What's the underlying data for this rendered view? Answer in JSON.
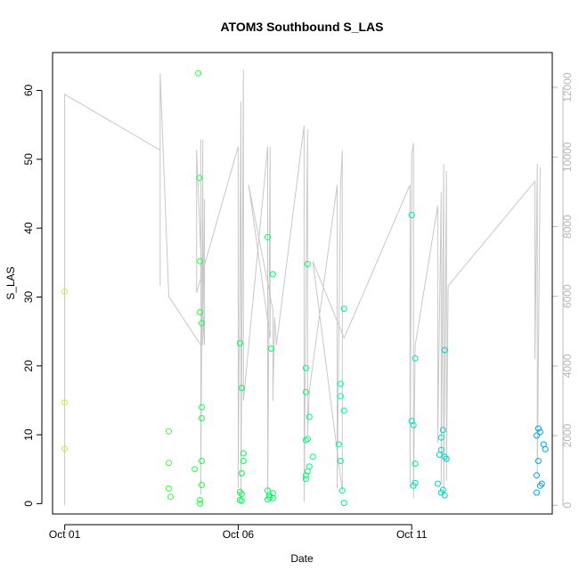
{
  "chart_data": {
    "type": "scatter",
    "title": "ATOM3 Southbound S_LAS",
    "xlabel": "Date",
    "ylabel": "S_LAS",
    "x_ticks": [
      {
        "day": 1,
        "label": "Oct 01"
      },
      {
        "day": 6,
        "label": "Oct 06"
      },
      {
        "day": 11,
        "label": "Oct 11"
      }
    ],
    "xlim_days": [
      0.65,
      15.05
    ],
    "ylim": [
      -1.5,
      65.5
    ],
    "y_ticks": [
      0,
      10,
      20,
      30,
      40,
      50,
      60
    ],
    "y2lim": [
      -250,
      13000
    ],
    "y2_ticks": [
      0,
      2000,
      4000,
      6000,
      8000,
      10000,
      12000
    ],
    "grid": false,
    "point_series": {
      "name": "S_LAS",
      "marker": "open-circle",
      "color_gradient": [
        "#b8f040",
        "#00ff40",
        "#00f0b0",
        "#00a0f0"
      ],
      "points": [
        {
          "day": 1.0,
          "y": 30.8
        },
        {
          "day": 1.0,
          "y": 14.7
        },
        {
          "day": 1.0,
          "y": 8.0
        },
        {
          "day": 4.0,
          "y": 10.5
        },
        {
          "day": 4.0,
          "y": 5.9
        },
        {
          "day": 4.0,
          "y": 2.2
        },
        {
          "day": 4.05,
          "y": 1.0
        },
        {
          "day": 4.75,
          "y": 5.0
        },
        {
          "day": 4.85,
          "y": 62.5
        },
        {
          "day": 4.88,
          "y": 47.3
        },
        {
          "day": 4.9,
          "y": 35.2
        },
        {
          "day": 4.9,
          "y": 27.8
        },
        {
          "day": 4.95,
          "y": 26.2
        },
        {
          "day": 4.95,
          "y": 14.0
        },
        {
          "day": 4.95,
          "y": 12.4
        },
        {
          "day": 4.95,
          "y": 6.2
        },
        {
          "day": 4.95,
          "y": 2.7
        },
        {
          "day": 4.9,
          "y": 0.5
        },
        {
          "day": 4.9,
          "y": 0.0
        },
        {
          "day": 6.05,
          "y": 23.3
        },
        {
          "day": 6.1,
          "y": 16.8
        },
        {
          "day": 6.15,
          "y": 7.3
        },
        {
          "day": 6.15,
          "y": 6.2
        },
        {
          "day": 6.1,
          "y": 4.4
        },
        {
          "day": 6.05,
          "y": 1.7
        },
        {
          "day": 6.1,
          "y": 1.4
        },
        {
          "day": 6.05,
          "y": 0.5
        },
        {
          "day": 6.1,
          "y": 0.4
        },
        {
          "day": 6.85,
          "y": 38.7
        },
        {
          "day": 7.0,
          "y": 33.3
        },
        {
          "day": 6.95,
          "y": 22.5
        },
        {
          "day": 6.85,
          "y": 1.9
        },
        {
          "day": 6.9,
          "y": 1.2
        },
        {
          "day": 7.0,
          "y": 1.5
        },
        {
          "day": 6.9,
          "y": 0.9
        },
        {
          "day": 6.85,
          "y": 0.6
        },
        {
          "day": 7.0,
          "y": 0.8
        },
        {
          "day": 8.0,
          "y": 34.8
        },
        {
          "day": 7.95,
          "y": 19.7
        },
        {
          "day": 7.95,
          "y": 16.2
        },
        {
          "day": 8.05,
          "y": 12.6
        },
        {
          "day": 8.0,
          "y": 9.4
        },
        {
          "day": 7.95,
          "y": 9.2
        },
        {
          "day": 8.15,
          "y": 6.8
        },
        {
          "day": 8.05,
          "y": 5.4
        },
        {
          "day": 8.0,
          "y": 4.7
        },
        {
          "day": 7.95,
          "y": 4.1
        },
        {
          "day": 7.95,
          "y": 3.6
        },
        {
          "day": 9.05,
          "y": 28.3
        },
        {
          "day": 8.95,
          "y": 17.4
        },
        {
          "day": 8.95,
          "y": 15.6
        },
        {
          "day": 9.05,
          "y": 13.5
        },
        {
          "day": 8.9,
          "y": 8.6
        },
        {
          "day": 8.95,
          "y": 6.2
        },
        {
          "day": 9.0,
          "y": 1.9
        },
        {
          "day": 9.05,
          "y": 0.1
        },
        {
          "day": 11.0,
          "y": 41.9
        },
        {
          "day": 11.1,
          "y": 21.1
        },
        {
          "day": 11.0,
          "y": 12.0
        },
        {
          "day": 11.05,
          "y": 11.4
        },
        {
          "day": 11.1,
          "y": 5.8
        },
        {
          "day": 11.1,
          "y": 3.0
        },
        {
          "day": 11.05,
          "y": 2.6
        },
        {
          "day": 11.95,
          "y": 22.3
        },
        {
          "day": 11.9,
          "y": 10.7
        },
        {
          "day": 11.85,
          "y": 9.6
        },
        {
          "day": 11.85,
          "y": 7.8
        },
        {
          "day": 11.8,
          "y": 7.1
        },
        {
          "day": 11.95,
          "y": 6.8
        },
        {
          "day": 12.0,
          "y": 6.5
        },
        {
          "day": 11.75,
          "y": 2.9
        },
        {
          "day": 11.9,
          "y": 2.0
        },
        {
          "day": 11.85,
          "y": 1.6
        },
        {
          "day": 11.95,
          "y": 1.2
        },
        {
          "day": 14.65,
          "y": 10.9
        },
        {
          "day": 14.7,
          "y": 10.4
        },
        {
          "day": 14.6,
          "y": 9.9
        },
        {
          "day": 14.8,
          "y": 8.6
        },
        {
          "day": 14.85,
          "y": 7.9
        },
        {
          "day": 14.65,
          "y": 6.2
        },
        {
          "day": 14.6,
          "y": 4.1
        },
        {
          "day": 14.75,
          "y": 2.9
        },
        {
          "day": 14.7,
          "y": 2.6
        },
        {
          "day": 14.6,
          "y": 1.6
        }
      ]
    },
    "line_series": {
      "name": "",
      "axis": "right",
      "color": "#c8c8c8",
      "points": [
        {
          "day": 1.0,
          "y": 0
        },
        {
          "day": 1.0,
          "y": 11800
        },
        {
          "day": 3.75,
          "y": 10200
        },
        {
          "day": 3.75,
          "y": 6300
        },
        {
          "day": 3.75,
          "y": 12400
        },
        {
          "day": 4.0,
          "y": 6000
        },
        {
          "day": 4.92,
          "y": 4600
        },
        {
          "day": 4.92,
          "y": 10500
        },
        {
          "day": 4.92,
          "y": 300
        },
        {
          "day": 4.98,
          "y": 10500
        },
        {
          "day": 4.98,
          "y": 4600
        },
        {
          "day": 5.03,
          "y": 8800
        },
        {
          "day": 5.03,
          "y": 4600
        },
        {
          "day": 4.8,
          "y": 10200
        },
        {
          "day": 4.8,
          "y": 6100
        },
        {
          "day": 6.0,
          "y": 10300
        },
        {
          "day": 6.0,
          "y": 500
        },
        {
          "day": 6.08,
          "y": 11600
        },
        {
          "day": 6.08,
          "y": 200
        },
        {
          "day": 6.15,
          "y": 12500
        },
        {
          "day": 6.15,
          "y": 3000
        },
        {
          "day": 6.85,
          "y": 10300
        },
        {
          "day": 6.85,
          "y": 300
        },
        {
          "day": 6.92,
          "y": 10300
        },
        {
          "day": 6.92,
          "y": 4800
        },
        {
          "day": 6.3,
          "y": 9200
        },
        {
          "day": 7.0,
          "y": 5600
        },
        {
          "day": 7.0,
          "y": 3000
        },
        {
          "day": 7.05,
          "y": 5400
        },
        {
          "day": 7.1,
          "y": 4600
        },
        {
          "day": 7.9,
          "y": 10900
        },
        {
          "day": 7.9,
          "y": 100
        },
        {
          "day": 8.0,
          "y": 10800
        },
        {
          "day": 8.0,
          "y": 2000
        },
        {
          "day": 8.05,
          "y": 3300
        },
        {
          "day": 8.85,
          "y": 9200
        },
        {
          "day": 8.85,
          "y": 500
        },
        {
          "day": 8.95,
          "y": 9200
        },
        {
          "day": 9.0,
          "y": 10200
        },
        {
          "day": 9.0,
          "y": 400
        },
        {
          "day": 8.15,
          "y": 7000
        },
        {
          "day": 9.05,
          "y": 4800
        },
        {
          "day": 10.95,
          "y": 9200
        },
        {
          "day": 10.95,
          "y": 500
        },
        {
          "day": 11.0,
          "y": 10100
        },
        {
          "day": 11.05,
          "y": 10400
        },
        {
          "day": 11.05,
          "y": 200
        },
        {
          "day": 11.1,
          "y": 4600
        },
        {
          "day": 11.75,
          "y": 8600
        },
        {
          "day": 11.75,
          "y": 1800
        },
        {
          "day": 11.85,
          "y": 9000
        },
        {
          "day": 11.85,
          "y": 600
        },
        {
          "day": 11.92,
          "y": 9800
        },
        {
          "day": 11.92,
          "y": 300
        },
        {
          "day": 12.0,
          "y": 9600
        },
        {
          "day": 12.0,
          "y": 700
        },
        {
          "day": 12.05,
          "y": 6300
        },
        {
          "day": 14.55,
          "y": 9300
        },
        {
          "day": 14.55,
          "y": 4200
        },
        {
          "day": 14.62,
          "y": 9800
        },
        {
          "day": 14.62,
          "y": 800
        },
        {
          "day": 14.7,
          "y": 9700
        }
      ]
    }
  }
}
